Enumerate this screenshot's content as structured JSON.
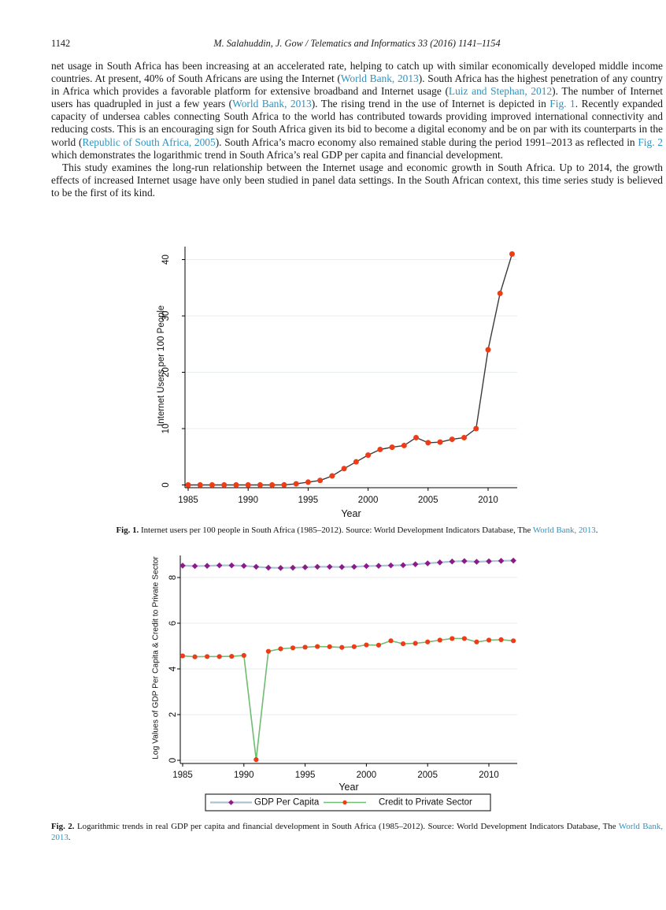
{
  "page": {
    "number": "1142",
    "running_title": "M. Salahuddin, J. Gow / Telematics and Informatics 33 (2016) 1141–1154"
  },
  "colors": {
    "link": "#2e93c0",
    "grid": "#e8eeee",
    "axis": "#000000",
    "legend_border": "#3a3a3a"
  },
  "body": {
    "paragraph1": [
      {
        "t": "net usage in South Africa has been increasing at an accelerated rate, helping to catch up with similar economically developed middle income countries. At present, 40% of South Africans are using the Internet ("
      },
      {
        "t": "World Bank, 2013",
        "link": true
      },
      {
        "t": "). South Africa has the highest penetration of any country in Africa which provides a favorable platform for extensive broadband and Internet usage ("
      },
      {
        "t": "Luiz and Stephan, 2012",
        "link": true
      },
      {
        "t": "). The number of Internet users has quadrupled in just a few years ("
      },
      {
        "t": "World Bank, 2013",
        "link": true
      },
      {
        "t": "). The rising trend in the use of Internet is depicted in "
      },
      {
        "t": "Fig. 1",
        "link": true
      },
      {
        "t": ". Recently expanded capacity of undersea cables connecting South Africa to the world has contributed towards providing improved international connectivity and reducing costs. This is an encouraging sign for South Africa given its bid to become a digital economy and be on par with its counterparts in the world ("
      },
      {
        "t": "Republic of South Africa, 2005",
        "link": true
      },
      {
        "t": "). South Africa’s macro economy also remained stable during the period 1991–2013 as reflected in "
      },
      {
        "t": "Fig. 2",
        "link": true
      },
      {
        "t": " which demonstrates the logarithmic trend in South Africa’s real GDP per capita and financial development."
      }
    ],
    "paragraph2": [
      {
        "t": "This study examines the long-run relationship between the Internet usage and economic growth in South Africa. Up to 2014, the growth effects of increased Internet usage have only been studied in panel data settings. In the South African context, this time series study is believed to be the first of its kind."
      }
    ]
  },
  "captions": {
    "fig1": [
      {
        "t": "Fig. 1.",
        "b": true
      },
      {
        "t": " Internet users per 100 people in South Africa (1985–2012). Source: World Development Indicators Database, The "
      },
      {
        "t": "World Bank, 2013",
        "link": true
      },
      {
        "t": "."
      }
    ],
    "fig2": [
      {
        "t": "Fig. 2.",
        "b": true
      },
      {
        "t": " Logarithmic trends in real GDP per capita and financial development in South Africa (1985–2012). Source: World Development Indicators Database, The "
      },
      {
        "t": "World Bank, 2013",
        "link": true
      },
      {
        "t": "."
      }
    ]
  },
  "chart_data": [
    {
      "id": "fig1",
      "type": "line",
      "title": "",
      "xlabel": "Year",
      "ylabel": "Internet Users per 100 People",
      "x": [
        1985,
        1986,
        1987,
        1988,
        1989,
        1990,
        1991,
        1992,
        1993,
        1994,
        1995,
        1996,
        1997,
        1998,
        1999,
        2000,
        2001,
        2002,
        2003,
        2004,
        2005,
        2006,
        2007,
        2008,
        2009,
        2010,
        2011,
        2012
      ],
      "xticks": [
        1985,
        1990,
        1995,
        2000,
        2005,
        2010
      ],
      "yticks": [
        0,
        10,
        20,
        30,
        40
      ],
      "xlim": [
        1984.5,
        2012.5
      ],
      "ylim": [
        0,
        42
      ],
      "grid": true,
      "legend_position": "none",
      "series": [
        {
          "name": "Internet Users per 100 People",
          "line_color": "#3a3a3a",
          "marker": "circle",
          "marker_color": "#ee3d16",
          "values": [
            0,
            0,
            0,
            0,
            0,
            0,
            0,
            0.001,
            0.01,
            0.2,
            0.5,
            0.8,
            1.6,
            2.9,
            4.1,
            5.3,
            6.3,
            6.7,
            7.0,
            8.4,
            7.5,
            7.6,
            8.1,
            8.4,
            10,
            24,
            34,
            41
          ]
        }
      ]
    },
    {
      "id": "fig2",
      "type": "line",
      "title": "",
      "xlabel": "Year",
      "ylabel": "Log Values of GDP Per Capita & Credit to Private Sector",
      "x": [
        1985,
        1986,
        1987,
        1988,
        1989,
        1990,
        1991,
        1992,
        1993,
        1994,
        1995,
        1996,
        1997,
        1998,
        1999,
        2000,
        2001,
        2002,
        2003,
        2004,
        2005,
        2006,
        2007,
        2008,
        2009,
        2010,
        2011,
        2012
      ],
      "xticks": [
        1985,
        1990,
        1995,
        2000,
        2005,
        2010
      ],
      "yticks": [
        0,
        2,
        4,
        6,
        8
      ],
      "xlim": [
        1984.5,
        2012.5
      ],
      "ylim": [
        0,
        8.8
      ],
      "grid": true,
      "legend_position": "bottom",
      "series": [
        {
          "name": "GDP Per Capita",
          "line_color": "#aac4d4",
          "marker": "diamond",
          "marker_color": "#8b1a8b",
          "values": [
            8.52,
            8.5,
            8.51,
            8.53,
            8.53,
            8.51,
            8.47,
            8.43,
            8.42,
            8.43,
            8.45,
            8.47,
            8.47,
            8.46,
            8.47,
            8.5,
            8.51,
            8.53,
            8.54,
            8.58,
            8.62,
            8.66,
            8.7,
            8.72,
            8.69,
            8.71,
            8.73,
            8.74
          ]
        },
        {
          "name": "Credit to Private Sector",
          "line_color": "#6fbc72",
          "marker": "circle",
          "marker_color": "#ee3d16",
          "values": [
            4.57,
            4.53,
            4.54,
            4.54,
            4.55,
            4.59,
            0.03,
            4.77,
            4.88,
            4.92,
            4.95,
            4.98,
            4.97,
            4.94,
            4.97,
            5.05,
            5.04,
            5.23,
            5.1,
            5.12,
            5.18,
            5.26,
            5.33,
            5.33,
            5.18,
            5.26,
            5.28,
            5.23
          ]
        }
      ]
    }
  ]
}
